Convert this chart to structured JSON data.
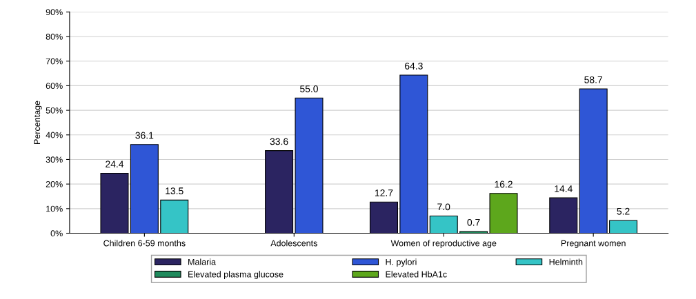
{
  "chart_data": {
    "type": "bar",
    "ylabel": "Percentage",
    "categories": [
      "Children 6-59 months",
      "Adolescents",
      "Women of reproductive age",
      "Pregnant women"
    ],
    "series": [
      {
        "name": "Malaria",
        "color": "#2b2461",
        "values": [
          24.4,
          33.6,
          12.7,
          14.4
        ],
        "value_labels": [
          "24.4",
          "33.6",
          "12.7",
          "14.4"
        ]
      },
      {
        "name": "H. pylori",
        "color": "#2f56d6",
        "values": [
          36.1,
          55.0,
          64.3,
          58.7
        ],
        "value_labels": [
          "36.1",
          "55.0",
          "64.3",
          "58.7"
        ]
      },
      {
        "name": "Helminth",
        "color": "#35c4c6",
        "values": [
          13.5,
          null,
          7.0,
          5.2
        ],
        "value_labels": [
          "13.5",
          null,
          "7.0",
          "5.2"
        ]
      },
      {
        "name": "Elevated plasma glucose",
        "color": "#1f8a5c",
        "values": [
          null,
          null,
          0.7,
          null
        ],
        "value_labels": [
          null,
          null,
          "0.7",
          null
        ]
      },
      {
        "name": "Elevated HbA1c",
        "color": "#5da71c",
        "values": [
          null,
          null,
          16.2,
          null
        ],
        "value_labels": [
          null,
          null,
          "16.2",
          null
        ]
      }
    ],
    "ylim": [
      0,
      90
    ],
    "yticks": [
      {
        "value": 0,
        "label": "0%"
      },
      {
        "value": 10,
        "label": "10%"
      },
      {
        "value": 20,
        "label": "20%"
      },
      {
        "value": 30,
        "label": "30%"
      },
      {
        "value": 40,
        "label": "40%"
      },
      {
        "value": 50,
        "label": "50%"
      },
      {
        "value": 60,
        "label": "60%"
      },
      {
        "value": 70,
        "label": "70%"
      },
      {
        "value": 80,
        "label": "80%"
      },
      {
        "value": 90,
        "label": "90%"
      }
    ],
    "grid": "y",
    "legend": "bottom"
  }
}
